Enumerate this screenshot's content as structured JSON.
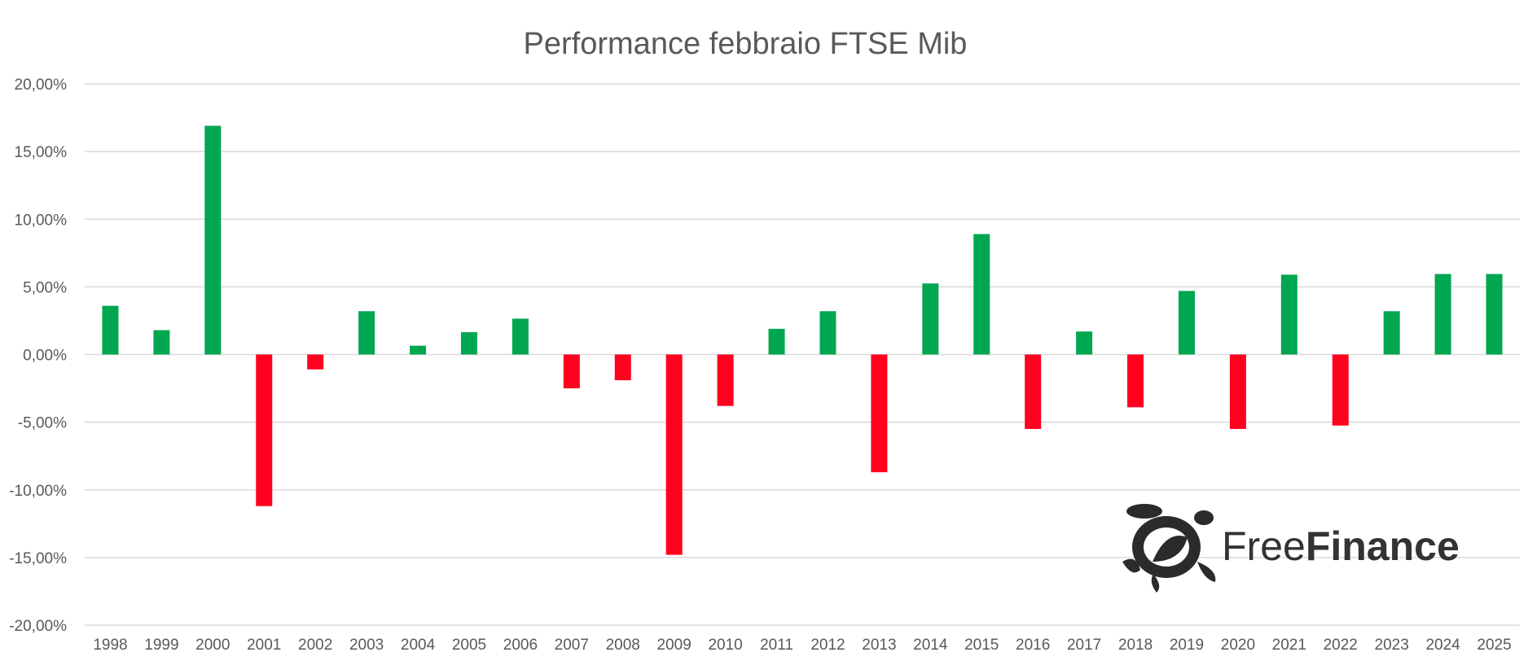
{
  "chart_data": {
    "type": "bar",
    "title": "Performance febbraio FTSE Mib",
    "xlabel": "",
    "ylabel": "",
    "ylim": [
      -20,
      20
    ],
    "yticks": [
      20,
      15,
      10,
      5,
      0,
      -5,
      -10,
      -15,
      -20
    ],
    "ytick_labels": [
      "20,00%",
      "15,00%",
      "10,00%",
      "5,00%",
      "0,00%",
      "-5,00%",
      "-10,00%",
      "-15,00%",
      "-20,00%"
    ],
    "grid": true,
    "legend": "none",
    "categories": [
      "1998",
      "1999",
      "2000",
      "2001",
      "2002",
      "2003",
      "2004",
      "2005",
      "2006",
      "2007",
      "2008",
      "2009",
      "2010",
      "2011",
      "2012",
      "2013",
      "2014",
      "2015",
      "2016",
      "2017",
      "2018",
      "2019",
      "2020",
      "2021",
      "2022",
      "2023",
      "2024",
      "2025"
    ],
    "values": [
      3.6,
      1.8,
      16.9,
      -11.2,
      -1.1,
      3.2,
      0.65,
      1.65,
      2.65,
      -2.5,
      -1.9,
      -14.8,
      -3.8,
      1.9,
      3.2,
      -8.7,
      5.25,
      8.9,
      -5.5,
      1.7,
      -3.9,
      4.7,
      -5.5,
      5.9,
      -5.25,
      3.2,
      5.95,
      5.95
    ],
    "unit": "%",
    "colors": {
      "positive": "#00A650",
      "negative": "#FF001F",
      "grid": "#D9D9D9",
      "text": "#595959"
    }
  },
  "logo": {
    "part1": "Free",
    "part2": "Finance"
  }
}
